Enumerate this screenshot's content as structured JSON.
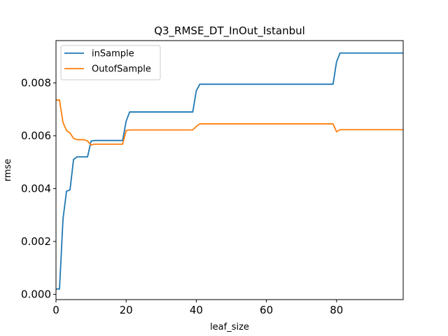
{
  "chart_data": {
    "type": "line",
    "title": "Q3_RMSE_DT_InOut_Istanbul",
    "xlabel": "leaf_size",
    "ylabel": "rmse",
    "xlim": [
      0,
      99
    ],
    "ylim": [
      -0.0002,
      0.0096
    ],
    "xticks": [
      0,
      20,
      40,
      60,
      80
    ],
    "xtick_labels": [
      "0",
      "20",
      "40",
      "60",
      "80"
    ],
    "yticks": [
      0,
      0.002,
      0.004,
      0.006,
      0.008
    ],
    "ytick_labels": [
      "0.000",
      "0.002",
      "0.004",
      "0.006",
      "0.008"
    ],
    "grid": false,
    "legend_position": "top-left",
    "series": [
      {
        "name": "inSample",
        "color": "#1f77b4",
        "points": [
          [
            0,
            0.0002
          ],
          [
            1,
            0.0002
          ],
          [
            2,
            0.00285
          ],
          [
            3,
            0.0039
          ],
          [
            4,
            0.00395
          ],
          [
            5,
            0.0051
          ],
          [
            6,
            0.0052
          ],
          [
            7,
            0.0052
          ],
          [
            8,
            0.0052
          ],
          [
            9,
            0.0052
          ],
          [
            10,
            0.0058
          ],
          [
            11,
            0.00582
          ],
          [
            19,
            0.00582
          ],
          [
            20,
            0.00655
          ],
          [
            21,
            0.0069
          ],
          [
            22,
            0.0069
          ],
          [
            39,
            0.0069
          ],
          [
            40,
            0.0077
          ],
          [
            41,
            0.00795
          ],
          [
            42,
            0.00795
          ],
          [
            79,
            0.00795
          ],
          [
            80,
            0.0088
          ],
          [
            81,
            0.00913
          ],
          [
            99,
            0.00913
          ]
        ]
      },
      {
        "name": "OutofSample",
        "color": "#ff7f0e",
        "points": [
          [
            0,
            0.00735
          ],
          [
            1,
            0.00735
          ],
          [
            2,
            0.0065
          ],
          [
            3,
            0.0062
          ],
          [
            4,
            0.0061
          ],
          [
            5,
            0.0059
          ],
          [
            6,
            0.00585
          ],
          [
            7,
            0.00585
          ],
          [
            8,
            0.00585
          ],
          [
            9,
            0.0058
          ],
          [
            10,
            0.00565
          ],
          [
            11,
            0.00568
          ],
          [
            19,
            0.00568
          ],
          [
            20,
            0.0062
          ],
          [
            21,
            0.00622
          ],
          [
            22,
            0.00622
          ],
          [
            39,
            0.00622
          ],
          [
            40,
            0.00635
          ],
          [
            41,
            0.00645
          ],
          [
            42,
            0.00645
          ],
          [
            79,
            0.00645
          ],
          [
            80,
            0.00615
          ],
          [
            81,
            0.00623
          ],
          [
            99,
            0.00623
          ]
        ]
      }
    ]
  }
}
